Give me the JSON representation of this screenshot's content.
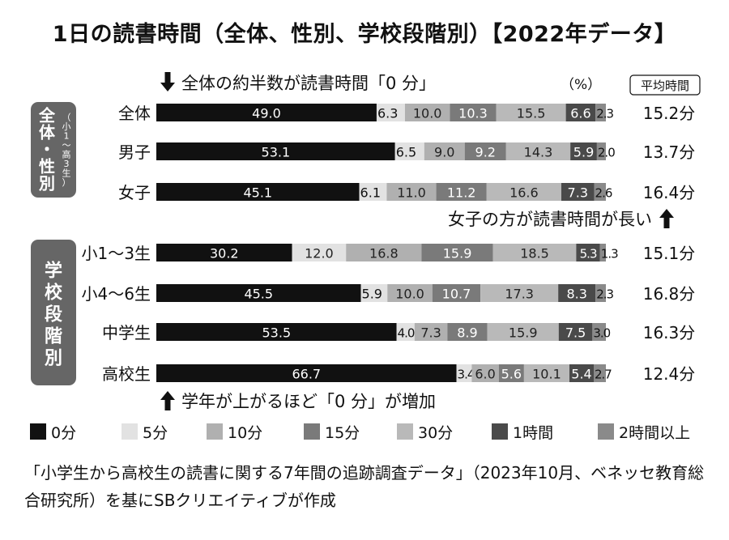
{
  "title": "1日の読書時間（全体、性別、学校段階別）【2022年データ】",
  "note_all": "全体の約半数が読書時間「0 分」",
  "note_girls": "女子の方が読書時間が長い",
  "note_school": "学年が上がるほど「0 分」が増加",
  "unit_label": "（%）",
  "avg_header": "平均時間",
  "group_labels": [
    {
      "main": "全体・性別",
      "sub": "（小1〜高3生）"
    },
    {
      "main": "学校段階別",
      "sub": ""
    }
  ],
  "source": "「小学生から高校生の読書に関する7年間の追跡調査データ」（2023年10月、ベネッセ教育総合研究所）を基にSBクリエイティブが作成",
  "colors": {
    "0min": "#111111",
    "5min": "#e2e2e2",
    "10min": "#b0b0b0",
    "15min": "#7a7a7a",
    "30min": "#b9b9b9",
    "1h": "#4a4a4a",
    "2h": "#8a8a8a"
  },
  "chart_data": {
    "type": "bar",
    "orientation": "horizontal",
    "stacked": true,
    "unit": "%",
    "categories": [
      "全体",
      "男子",
      "女子",
      "小1〜3生",
      "小4〜6生",
      "中学生",
      "高校生"
    ],
    "series": [
      {
        "name": "0分",
        "values": [
          49.0,
          53.1,
          45.1,
          30.2,
          45.5,
          53.5,
          66.7
        ]
      },
      {
        "name": "5分",
        "values": [
          6.3,
          6.5,
          6.1,
          12.0,
          5.9,
          4.0,
          3.4
        ]
      },
      {
        "name": "10分",
        "values": [
          10.0,
          9.0,
          11.0,
          16.8,
          10.0,
          7.3,
          6.0
        ]
      },
      {
        "name": "15分",
        "values": [
          10.3,
          9.2,
          11.2,
          15.9,
          10.7,
          8.9,
          5.6
        ]
      },
      {
        "name": "30分",
        "values": [
          15.5,
          14.3,
          16.6,
          18.5,
          17.3,
          15.9,
          10.1
        ]
      },
      {
        "name": "1時間",
        "values": [
          6.6,
          5.9,
          7.3,
          5.3,
          8.3,
          7.5,
          5.4
        ]
      },
      {
        "name": "2時間以上",
        "values": [
          2.3,
          2.0,
          2.6,
          1.3,
          2.3,
          3.0,
          2.7
        ]
      }
    ],
    "average_time": [
      "15.2分",
      "13.7分",
      "16.4分",
      "15.1分",
      "16.8分",
      "16.3分",
      "12.4分"
    ],
    "xlim": [
      0,
      100
    ],
    "grid": false,
    "legend_position": "bottom"
  }
}
